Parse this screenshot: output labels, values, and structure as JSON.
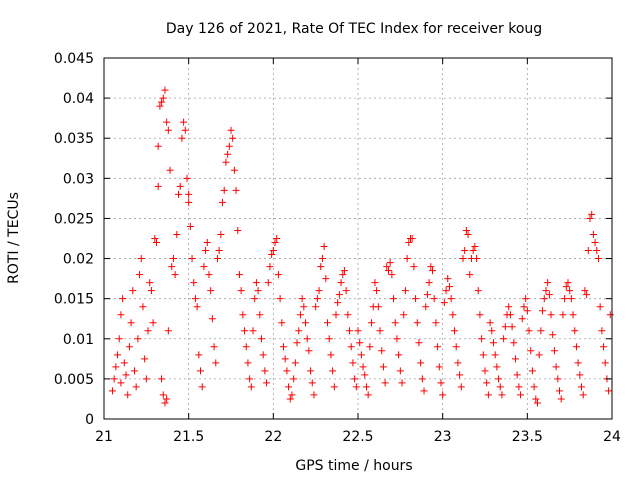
{
  "chart_data": {
    "type": "scatter",
    "title": "Day 126 of 2021, Rate Of TEC Index for receiver koug",
    "xlabel": "GPS time / hours",
    "ylabel": "ROTI / TECUs",
    "xlim": [
      21,
      24
    ],
    "ylim": [
      0,
      0.045
    ],
    "xticks": [
      21,
      21.5,
      22,
      22.5,
      23,
      23.5,
      24
    ],
    "xtick_labels": [
      "21",
      "21.5",
      "22",
      "22.5",
      "23",
      "23.5",
      "24"
    ],
    "yticks": [
      0,
      0.005,
      0.01,
      0.015,
      0.02,
      0.025,
      0.03,
      0.035,
      0.04,
      0.045
    ],
    "ytick_labels": [
      "0",
      "0.005",
      "0.01",
      "0.015",
      "0.02",
      "0.025",
      "0.03",
      "0.035",
      "0.04",
      "0.045"
    ],
    "grid": true,
    "marker": "+",
    "marker_color": "#ff0000",
    "series": [
      {
        "name": "ROTI",
        "points": [
          [
            21.05,
            0.0035
          ],
          [
            21.06,
            0.005
          ],
          [
            21.07,
            0.0065
          ],
          [
            21.08,
            0.008
          ],
          [
            21.09,
            0.01
          ],
          [
            21.1,
            0.0045
          ],
          [
            21.1,
            0.013
          ],
          [
            21.11,
            0.015
          ],
          [
            21.12,
            0.007
          ],
          [
            21.13,
            0.0055
          ],
          [
            21.14,
            0.003
          ],
          [
            21.15,
            0.009
          ],
          [
            21.16,
            0.012
          ],
          [
            21.17,
            0.016
          ],
          [
            21.18,
            0.006
          ],
          [
            21.19,
            0.004
          ],
          [
            21.2,
            0.01
          ],
          [
            21.21,
            0.018
          ],
          [
            21.22,
            0.02
          ],
          [
            21.23,
            0.014
          ],
          [
            21.24,
            0.0075
          ],
          [
            21.25,
            0.005
          ],
          [
            21.26,
            0.011
          ],
          [
            21.27,
            0.017
          ],
          [
            21.28,
            0.016
          ],
          [
            21.29,
            0.012
          ],
          [
            21.3,
            0.0225
          ],
          [
            21.31,
            0.022
          ],
          [
            21.32,
            0.029
          ],
          [
            21.32,
            0.034
          ],
          [
            21.33,
            0.039
          ],
          [
            21.34,
            0.0395
          ],
          [
            21.35,
            0.04
          ],
          [
            21.36,
            0.041
          ],
          [
            21.37,
            0.037
          ],
          [
            21.38,
            0.036
          ],
          [
            21.34,
            0.005
          ],
          [
            21.35,
            0.003
          ],
          [
            21.36,
            0.002
          ],
          [
            21.37,
            0.0025
          ],
          [
            21.38,
            0.011
          ],
          [
            21.39,
            0.031
          ],
          [
            21.4,
            0.019
          ],
          [
            21.41,
            0.02
          ],
          [
            21.42,
            0.018
          ],
          [
            21.43,
            0.023
          ],
          [
            21.44,
            0.028
          ],
          [
            21.45,
            0.029
          ],
          [
            21.46,
            0.035
          ],
          [
            21.47,
            0.037
          ],
          [
            21.48,
            0.036
          ],
          [
            21.49,
            0.03
          ],
          [
            21.5,
            0.028
          ],
          [
            21.5,
            0.027
          ],
          [
            21.51,
            0.024
          ],
          [
            21.52,
            0.02
          ],
          [
            21.53,
            0.017
          ],
          [
            21.54,
            0.015
          ],
          [
            21.55,
            0.014
          ],
          [
            21.56,
            0.008
          ],
          [
            21.57,
            0.006
          ],
          [
            21.58,
            0.004
          ],
          [
            21.59,
            0.019
          ],
          [
            21.6,
            0.021
          ],
          [
            21.61,
            0.022
          ],
          [
            21.62,
            0.018
          ],
          [
            21.63,
            0.016
          ],
          [
            21.64,
            0.0125
          ],
          [
            21.65,
            0.009
          ],
          [
            21.66,
            0.007
          ],
          [
            21.67,
            0.02
          ],
          [
            21.68,
            0.021
          ],
          [
            21.69,
            0.023
          ],
          [
            21.7,
            0.027
          ],
          [
            21.71,
            0.0285
          ],
          [
            21.72,
            0.032
          ],
          [
            21.73,
            0.033
          ],
          [
            21.74,
            0.034
          ],
          [
            21.75,
            0.036
          ],
          [
            21.76,
            0.035
          ],
          [
            21.77,
            0.031
          ],
          [
            21.78,
            0.0285
          ],
          [
            21.79,
            0.0235
          ],
          [
            21.8,
            0.018
          ],
          [
            21.81,
            0.016
          ],
          [
            21.82,
            0.013
          ],
          [
            21.83,
            0.011
          ],
          [
            21.84,
            0.009
          ],
          [
            21.85,
            0.007
          ],
          [
            21.86,
            0.005
          ],
          [
            21.87,
            0.004
          ],
          [
            21.88,
            0.011
          ],
          [
            21.89,
            0.015
          ],
          [
            21.9,
            0.017
          ],
          [
            21.91,
            0.016
          ],
          [
            21.92,
            0.013
          ],
          [
            21.93,
            0.01
          ],
          [
            21.94,
            0.008
          ],
          [
            21.95,
            0.006
          ],
          [
            21.96,
            0.0045
          ],
          [
            21.97,
            0.017
          ],
          [
            21.98,
            0.019
          ],
          [
            21.99,
            0.0205
          ],
          [
            22.0,
            0.021
          ],
          [
            22.01,
            0.022
          ],
          [
            22.02,
            0.0225
          ],
          [
            22.03,
            0.018
          ],
          [
            22.04,
            0.015
          ],
          [
            22.05,
            0.012
          ],
          [
            22.06,
            0.009
          ],
          [
            22.07,
            0.0075
          ],
          [
            22.08,
            0.006
          ],
          [
            22.09,
            0.004
          ],
          [
            22.1,
            0.0025
          ],
          [
            22.11,
            0.003
          ],
          [
            22.12,
            0.005
          ],
          [
            22.13,
            0.007
          ],
          [
            22.14,
            0.0095
          ],
          [
            22.15,
            0.011
          ],
          [
            22.16,
            0.013
          ],
          [
            22.17,
            0.015
          ],
          [
            22.18,
            0.014
          ],
          [
            22.19,
            0.012
          ],
          [
            22.2,
            0.01
          ],
          [
            22.21,
            0.0085
          ],
          [
            22.22,
            0.006
          ],
          [
            22.23,
            0.0045
          ],
          [
            22.24,
            0.003
          ],
          [
            22.25,
            0.014
          ],
          [
            22.26,
            0.015
          ],
          [
            22.27,
            0.016
          ],
          [
            22.28,
            0.019
          ],
          [
            22.29,
            0.02
          ],
          [
            22.3,
            0.0215
          ],
          [
            22.31,
            0.0175
          ],
          [
            22.32,
            0.012
          ],
          [
            22.33,
            0.01
          ],
          [
            22.34,
            0.008
          ],
          [
            22.35,
            0.006
          ],
          [
            22.36,
            0.004
          ],
          [
            22.37,
            0.013
          ],
          [
            22.38,
            0.0145
          ],
          [
            22.39,
            0.0155
          ],
          [
            22.4,
            0.017
          ],
          [
            22.41,
            0.018
          ],
          [
            22.42,
            0.0185
          ],
          [
            22.43,
            0.016
          ],
          [
            22.44,
            0.013
          ],
          [
            22.45,
            0.011
          ],
          [
            22.46,
            0.009
          ],
          [
            22.47,
            0.007
          ],
          [
            22.48,
            0.005
          ],
          [
            22.49,
            0.004
          ],
          [
            22.5,
            0.011
          ],
          [
            22.51,
            0.0095
          ],
          [
            22.52,
            0.008
          ],
          [
            22.53,
            0.0065
          ],
          [
            22.54,
            0.0055
          ],
          [
            22.55,
            0.004
          ],
          [
            22.56,
            0.003
          ],
          [
            22.57,
            0.009
          ],
          [
            22.58,
            0.012
          ],
          [
            22.59,
            0.014
          ],
          [
            22.6,
            0.017
          ],
          [
            22.61,
            0.016
          ],
          [
            22.62,
            0.014
          ],
          [
            22.63,
            0.011
          ],
          [
            22.64,
            0.0085
          ],
          [
            22.65,
            0.0065
          ],
          [
            22.66,
            0.0045
          ],
          [
            22.67,
            0.019
          ],
          [
            22.68,
            0.0185
          ],
          [
            22.69,
            0.0195
          ],
          [
            22.7,
            0.018
          ],
          [
            22.71,
            0.015
          ],
          [
            22.72,
            0.012
          ],
          [
            22.73,
            0.01
          ],
          [
            22.74,
            0.008
          ],
          [
            22.75,
            0.006
          ],
          [
            22.76,
            0.0045
          ],
          [
            22.77,
            0.013
          ],
          [
            22.78,
            0.016
          ],
          [
            22.79,
            0.02
          ],
          [
            22.8,
            0.022
          ],
          [
            22.81,
            0.0225
          ],
          [
            22.82,
            0.0225
          ],
          [
            22.83,
            0.019
          ],
          [
            22.84,
            0.015
          ],
          [
            22.85,
            0.012
          ],
          [
            22.86,
            0.0095
          ],
          [
            22.87,
            0.007
          ],
          [
            22.88,
            0.005
          ],
          [
            22.89,
            0.0035
          ],
          [
            22.9,
            0.014
          ],
          [
            22.91,
            0.0155
          ],
          [
            22.92,
            0.017
          ],
          [
            22.93,
            0.019
          ],
          [
            22.94,
            0.0185
          ],
          [
            22.95,
            0.015
          ],
          [
            22.96,
            0.012
          ],
          [
            22.97,
            0.009
          ],
          [
            22.98,
            0.0065
          ],
          [
            22.99,
            0.0045
          ],
          [
            23.0,
            0.003
          ],
          [
            23.01,
            0.0145
          ],
          [
            23.02,
            0.016
          ],
          [
            23.03,
            0.0175
          ],
          [
            23.04,
            0.0165
          ],
          [
            23.05,
            0.015
          ],
          [
            23.06,
            0.013
          ],
          [
            23.07,
            0.011
          ],
          [
            23.08,
            0.009
          ],
          [
            23.09,
            0.007
          ],
          [
            23.1,
            0.0055
          ],
          [
            23.11,
            0.004
          ],
          [
            23.12,
            0.02
          ],
          [
            23.13,
            0.021
          ],
          [
            23.14,
            0.0235
          ],
          [
            23.15,
            0.023
          ],
          [
            23.16,
            0.018
          ],
          [
            23.17,
            0.02
          ],
          [
            23.18,
            0.021
          ],
          [
            23.19,
            0.0215
          ],
          [
            23.2,
            0.02
          ],
          [
            23.21,
            0.016
          ],
          [
            23.22,
            0.013
          ],
          [
            23.23,
            0.01
          ],
          [
            23.24,
            0.008
          ],
          [
            23.25,
            0.006
          ],
          [
            23.26,
            0.0045
          ],
          [
            23.27,
            0.003
          ],
          [
            23.28,
            0.012
          ],
          [
            23.29,
            0.011
          ],
          [
            23.3,
            0.0095
          ],
          [
            23.31,
            0.008
          ],
          [
            23.32,
            0.0065
          ],
          [
            23.33,
            0.005
          ],
          [
            23.34,
            0.004
          ],
          [
            23.35,
            0.003
          ],
          [
            23.36,
            0.01
          ],
          [
            23.37,
            0.0115
          ],
          [
            23.38,
            0.013
          ],
          [
            23.39,
            0.014
          ],
          [
            23.4,
            0.013
          ],
          [
            23.41,
            0.0115
          ],
          [
            23.42,
            0.0095
          ],
          [
            23.43,
            0.0075
          ],
          [
            23.44,
            0.0055
          ],
          [
            23.45,
            0.004
          ],
          [
            23.46,
            0.003
          ],
          [
            23.47,
            0.0125
          ],
          [
            23.48,
            0.014
          ],
          [
            23.49,
            0.015
          ],
          [
            23.5,
            0.0135
          ],
          [
            23.51,
            0.011
          ],
          [
            23.52,
            0.0085
          ],
          [
            23.53,
            0.006
          ],
          [
            23.54,
            0.004
          ],
          [
            23.55,
            0.0025
          ],
          [
            23.56,
            0.002
          ],
          [
            23.57,
            0.008
          ],
          [
            23.58,
            0.011
          ],
          [
            23.59,
            0.0135
          ],
          [
            23.6,
            0.015
          ],
          [
            23.61,
            0.016
          ],
          [
            23.62,
            0.017
          ],
          [
            23.63,
            0.0155
          ],
          [
            23.64,
            0.013
          ],
          [
            23.65,
            0.0105
          ],
          [
            23.66,
            0.0085
          ],
          [
            23.67,
            0.0065
          ],
          [
            23.68,
            0.005
          ],
          [
            23.69,
            0.0035
          ],
          [
            23.7,
            0.0025
          ],
          [
            23.71,
            0.013
          ],
          [
            23.72,
            0.015
          ],
          [
            23.73,
            0.0165
          ],
          [
            23.74,
            0.017
          ],
          [
            23.75,
            0.016
          ],
          [
            23.76,
            0.015
          ],
          [
            23.77,
            0.013
          ],
          [
            23.78,
            0.011
          ],
          [
            23.79,
            0.009
          ],
          [
            23.8,
            0.007
          ],
          [
            23.81,
            0.0055
          ],
          [
            23.82,
            0.004
          ],
          [
            23.83,
            0.003
          ],
          [
            23.84,
            0.016
          ],
          [
            23.85,
            0.0155
          ],
          [
            23.86,
            0.021
          ],
          [
            23.87,
            0.025
          ],
          [
            23.88,
            0.0255
          ],
          [
            23.89,
            0.023
          ],
          [
            23.9,
            0.022
          ],
          [
            23.91,
            0.021
          ],
          [
            23.92,
            0.02
          ],
          [
            23.93,
            0.014
          ],
          [
            23.94,
            0.011
          ],
          [
            23.95,
            0.009
          ],
          [
            23.96,
            0.007
          ],
          [
            23.97,
            0.005
          ],
          [
            23.98,
            0.0035
          ],
          [
            23.99,
            0.013
          ]
        ]
      }
    ]
  }
}
